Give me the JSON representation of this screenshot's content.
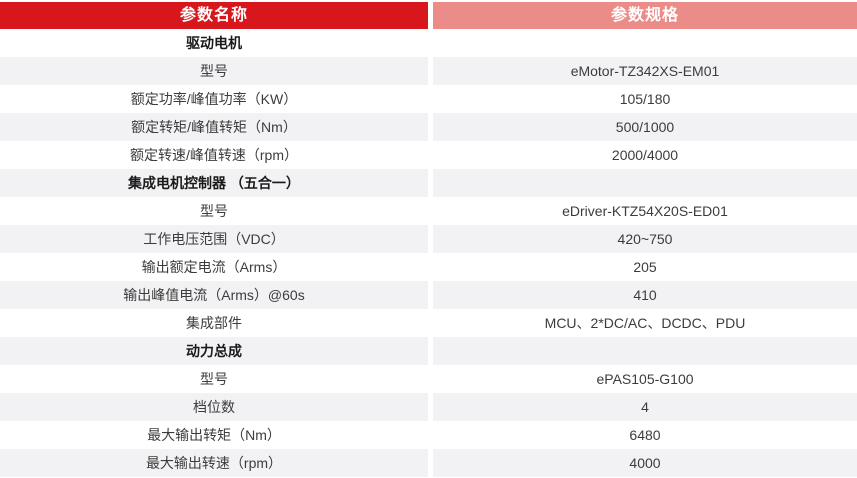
{
  "table": {
    "header": {
      "name_col": "参数名称",
      "spec_col": "参数规格"
    },
    "colors": {
      "header_left_bg": "#d8171d",
      "header_right_bg": "#ec8c88",
      "row_alt_bg": "#f2f2f4",
      "param_text": "#3c3c3c",
      "section_text": "#1a1a1a",
      "header_text": "#ffffff"
    },
    "rows": [
      {
        "type": "section",
        "label": "驱动电机",
        "value": "",
        "shaded": false
      },
      {
        "type": "param",
        "label": "型号",
        "value": "eMotor-TZ342XS-EM01",
        "shaded": true
      },
      {
        "type": "param",
        "label": "额定功率/峰值功率（KW）",
        "value": "105/180",
        "shaded": false
      },
      {
        "type": "param",
        "label": "额定转矩/峰值转矩（Nm）",
        "value": "500/1000",
        "shaded": true
      },
      {
        "type": "param",
        "label": "额定转速/峰值转速（rpm）",
        "value": "2000/4000",
        "shaded": false
      },
      {
        "type": "section",
        "label": "集成电机控制器 （五合一）",
        "value": "",
        "shaded": true
      },
      {
        "type": "param",
        "label": "型号",
        "value": "eDriver-KTZ54X20S-ED01",
        "shaded": false
      },
      {
        "type": "param",
        "label": "工作电压范围（VDC）",
        "value": "420~750",
        "shaded": true
      },
      {
        "type": "param",
        "label": "输出额定电流（Arms）",
        "value": "205",
        "shaded": false
      },
      {
        "type": "param",
        "label": "输出峰值电流（Arms）@60s",
        "value": "410",
        "shaded": true
      },
      {
        "type": "param",
        "label": "集成部件",
        "value": "MCU、2*DC/AC、DCDC、PDU",
        "shaded": false
      },
      {
        "type": "section",
        "label": "动力总成",
        "value": "",
        "shaded": true
      },
      {
        "type": "param",
        "label": "型号",
        "value": "ePAS105-G100",
        "shaded": false
      },
      {
        "type": "param",
        "label": "档位数",
        "value": "4",
        "shaded": true
      },
      {
        "type": "param",
        "label": "最大输出转矩（Nm）",
        "value": "6480",
        "shaded": false
      },
      {
        "type": "param",
        "label": "最大输出转速（rpm）",
        "value": "4000",
        "shaded": true
      }
    ]
  }
}
